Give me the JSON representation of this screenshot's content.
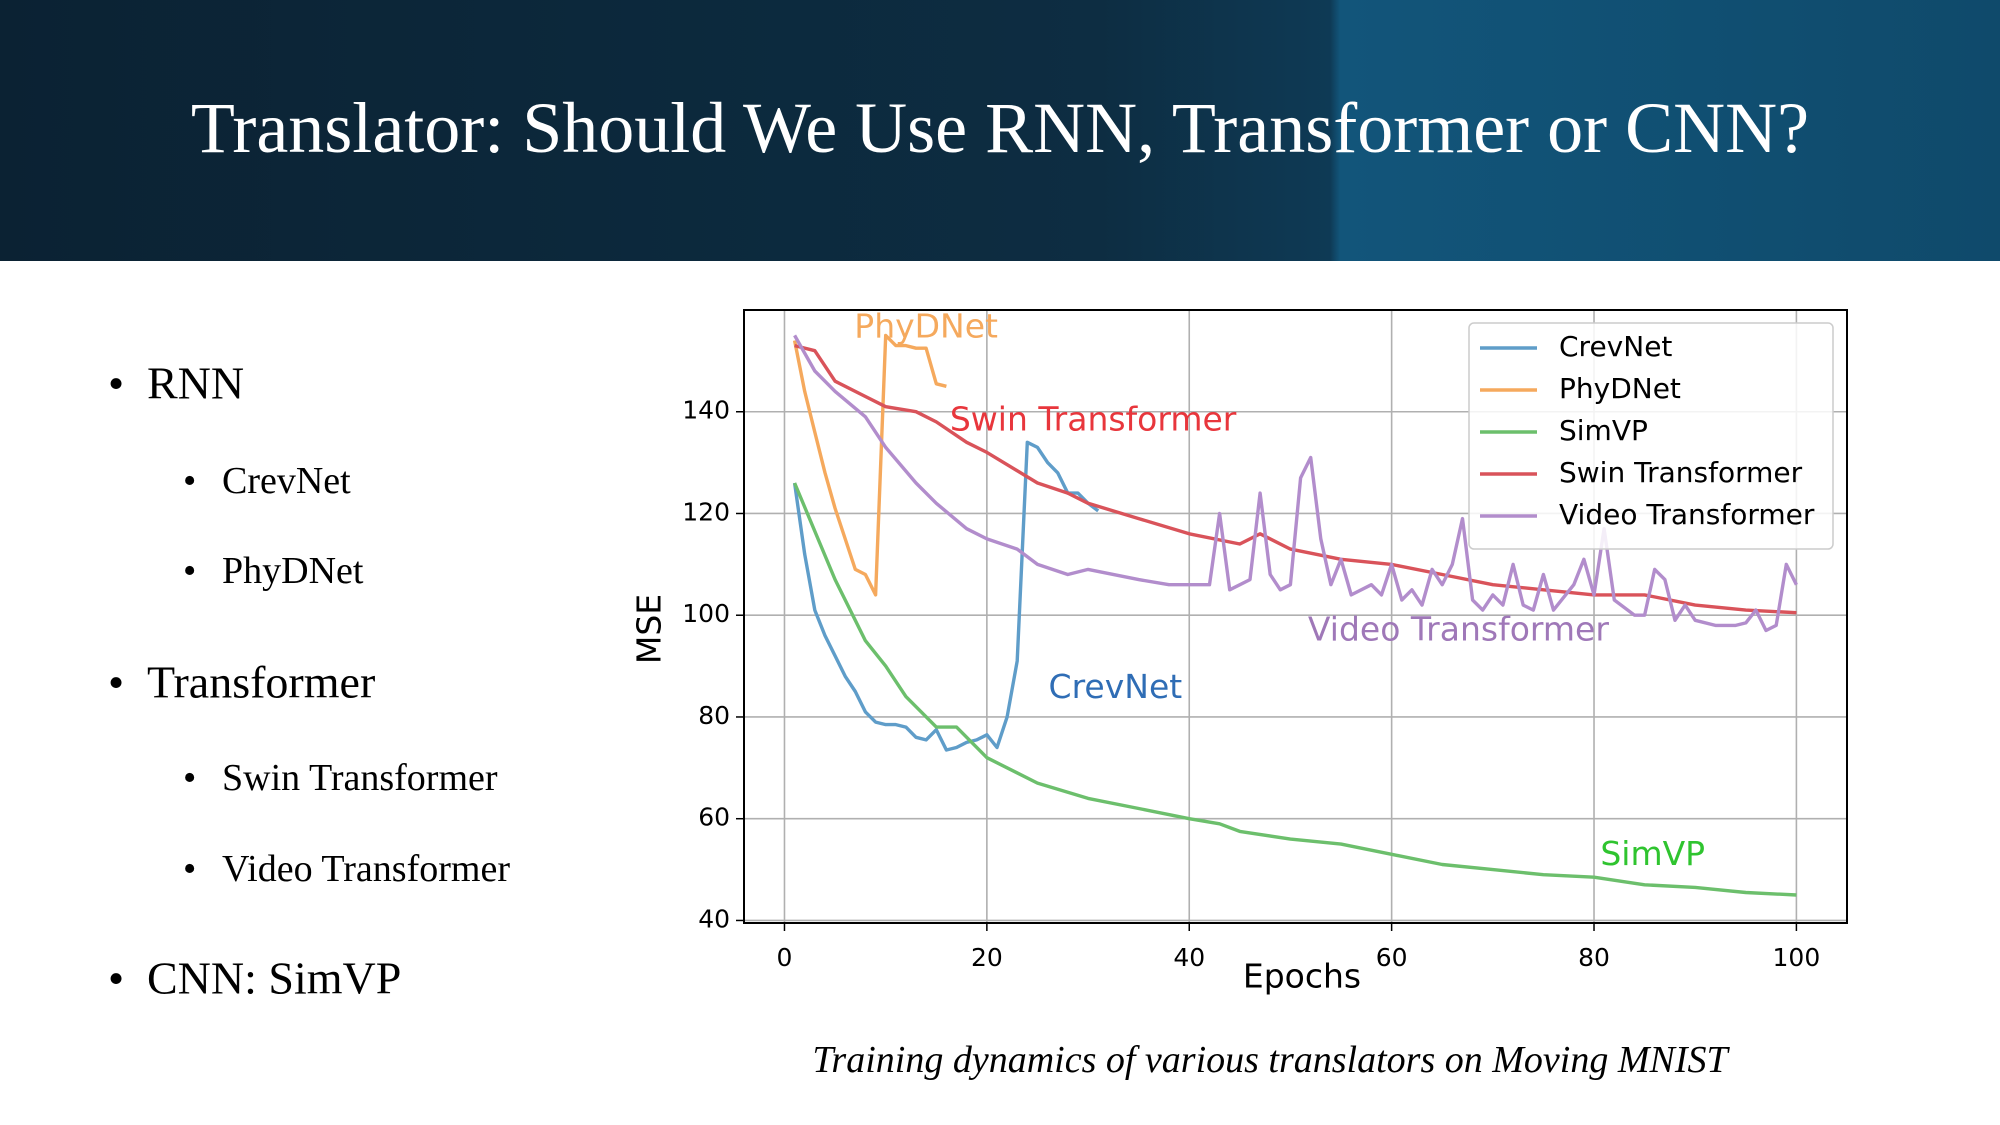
{
  "title": "Translator: Should We Use RNN, Transformer or CNN?",
  "bullets": [
    {
      "text": "RNN",
      "children": [
        "CrevNet",
        "PhyDNet"
      ]
    },
    {
      "text": "Transformer",
      "children": [
        "Swin Transformer",
        "Video Transformer"
      ]
    },
    {
      "text": "CNN: SimVP",
      "children": []
    }
  ],
  "caption": "Training dynamics of various translators on Moving MNIST",
  "chart_data": {
    "type": "line",
    "xlabel": "Epochs",
    "ylabel": "MSE",
    "xlim": [
      -4,
      105
    ],
    "ylim": [
      39.5,
      160
    ],
    "xticks": [
      0,
      20,
      40,
      60,
      80,
      100
    ],
    "yticks": [
      40,
      60,
      80,
      100,
      120,
      140
    ],
    "grid": true,
    "legend": "upper right",
    "series": [
      {
        "name": "CrevNet",
        "color": "#5f9dc9",
        "x": [
          1,
          2,
          3,
          4,
          5,
          6,
          7,
          8,
          9,
          10,
          11,
          12,
          13,
          14,
          15,
          16,
          17,
          18,
          19,
          20,
          21,
          22,
          23,
          24,
          25,
          26,
          27,
          28,
          29,
          30,
          31
        ],
        "values": [
          126,
          112,
          101,
          96,
          92,
          88,
          85,
          81,
          79,
          78.5,
          78.5,
          78,
          76,
          75.5,
          77.5,
          73.5,
          74,
          75,
          75.5,
          76.5,
          74,
          80,
          91,
          134,
          133,
          130,
          128,
          124,
          124,
          122,
          120.5
        ]
      },
      {
        "name": "PhyDNet",
        "color": "#f5a95d",
        "x": [
          1,
          2,
          3,
          4,
          5,
          6,
          7,
          8,
          9,
          10,
          11,
          12,
          13,
          14,
          15,
          16
        ],
        "values": [
          154,
          144,
          136,
          128,
          121,
          115,
          109,
          108,
          104,
          155,
          153,
          153,
          152.5,
          152.5,
          145.5,
          145
        ]
      },
      {
        "name": "SimVP",
        "color": "#6cbf6c",
        "x": [
          1,
          5,
          8,
          10,
          12,
          15,
          17,
          20,
          25,
          30,
          35,
          40,
          43,
          45,
          50,
          55,
          60,
          65,
          70,
          75,
          80,
          85,
          90,
          95,
          100
        ],
        "values": [
          126,
          107,
          95,
          90,
          84,
          78,
          78,
          72,
          67,
          64,
          62,
          60,
          59,
          57.5,
          56,
          55,
          53,
          51,
          50,
          49,
          48.5,
          47,
          46.5,
          45.5,
          45
        ]
      },
      {
        "name": "Swin Transformer",
        "color": "#d9535a",
        "x": [
          1,
          3,
          5,
          8,
          10,
          13,
          15,
          18,
          20,
          25,
          28,
          30,
          35,
          40,
          45,
          47,
          50,
          55,
          60,
          65,
          70,
          75,
          80,
          85,
          90,
          95,
          100
        ],
        "values": [
          153,
          152,
          146,
          143,
          141,
          140,
          138,
          134,
          132,
          126,
          124,
          122,
          119,
          116,
          114,
          116,
          113,
          111,
          110,
          108,
          106,
          105,
          104,
          104,
          102,
          101,
          100.5
        ]
      },
      {
        "name": "Video Transformer",
        "color": "#b28dcc",
        "x": [
          1,
          3,
          5,
          8,
          10,
          13,
          15,
          18,
          20,
          23,
          25,
          28,
          30,
          35,
          38,
          40,
          42,
          43,
          44,
          46,
          47,
          48,
          49,
          50,
          51,
          52,
          53,
          54,
          55,
          56,
          58,
          59,
          60,
          61,
          62,
          63,
          64,
          65,
          66,
          67,
          68,
          69,
          70,
          71,
          72,
          73,
          74,
          75,
          76,
          78,
          79,
          80,
          81,
          82,
          84,
          85,
          86,
          87,
          88,
          89,
          90,
          92,
          94,
          95,
          96,
          97,
          98,
          99,
          100
        ],
        "values": [
          155,
          148,
          144,
          139,
          133,
          126,
          122,
          117,
          115,
          113,
          110,
          108,
          109,
          107,
          106,
          106,
          106,
          120,
          105,
          107,
          124,
          108,
          105,
          106,
          127,
          131,
          115,
          106,
          111,
          104,
          106,
          104,
          110,
          103,
          105,
          102,
          109,
          106,
          110,
          119,
          103,
          101,
          104,
          102,
          110,
          102,
          101,
          108,
          101,
          106,
          111,
          104,
          117,
          103,
          100,
          100,
          109,
          107,
          99,
          102,
          99,
          98,
          98,
          98.5,
          101,
          97,
          98,
          110,
          106
        ]
      }
    ],
    "annotations": [
      {
        "text": "PhyDNet",
        "color": "#f5a95d"
      },
      {
        "text": "Swin Transformer",
        "color": "#e8363c"
      },
      {
        "text": "CrevNet",
        "color": "#2f6db5"
      },
      {
        "text": "Video Transformer",
        "color": "#9f78b8"
      },
      {
        "text": "SimVP",
        "color": "#2fc42f"
      }
    ]
  }
}
